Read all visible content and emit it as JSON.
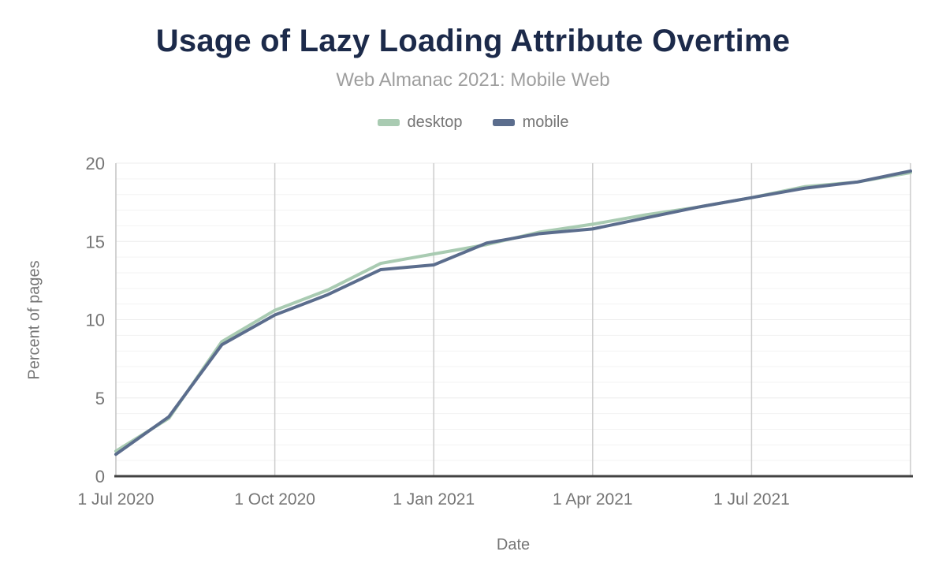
{
  "header": {
    "title": "Usage of Lazy Loading Attribute Overtime",
    "subtitle": "Web Almanac 2021: Mobile Web"
  },
  "legend": {
    "items": [
      {
        "label": "desktop",
        "color": "#a9cbb2"
      },
      {
        "label": "mobile",
        "color": "#5b6d8d"
      }
    ]
  },
  "colors": {
    "title": "#1c2a4a",
    "subtitle": "#9e9e9e",
    "axis_text": "#757575",
    "grid_horizontal_minor": "#f3f3f3",
    "grid_horizontal_major": "#ececec",
    "grid_vertical": "#cccccc",
    "axis_line": "#424242",
    "background": "#ffffff"
  },
  "chart_data": {
    "type": "line",
    "title": "Usage of Lazy Loading Attribute Overtime",
    "subtitle": "Web Almanac 2021: Mobile Web",
    "xlabel": "Date",
    "ylabel": "Percent of pages",
    "ylim": [
      0,
      20
    ],
    "y_major_ticks": [
      0,
      5,
      10,
      15,
      20
    ],
    "y_minor_step": 1,
    "grid": "on",
    "legend_position": "top",
    "x": [
      "1 Jul 2020",
      "1 Aug 2020",
      "1 Sep 2020",
      "1 Oct 2020",
      "1 Nov 2020",
      "1 Dec 2020",
      "1 Jan 2021",
      "1 Feb 2021",
      "1 Mar 2021",
      "1 Apr 2021",
      "1 May 2021",
      "1 Jun 2021",
      "1 Jul 2021",
      "1 Aug 2021",
      "1 Sep 2021",
      "1 Oct 2021"
    ],
    "x_tick_labels": [
      "1 Jul 2020",
      "1 Oct 2020",
      "1 Jan 2021",
      "1 Apr 2021",
      "1 Jul 2021"
    ],
    "x_tick_indices": [
      0,
      3,
      6,
      9,
      12
    ],
    "x_gridline_indices": [
      0,
      3,
      6,
      9,
      12,
      15
    ],
    "series": [
      {
        "name": "desktop",
        "color": "#a9cbb2",
        "values": [
          1.6,
          3.7,
          8.6,
          10.6,
          11.9,
          13.6,
          14.2,
          14.8,
          15.6,
          16.1,
          16.7,
          17.2,
          17.8,
          18.5,
          18.8,
          19.4
        ]
      },
      {
        "name": "mobile",
        "color": "#5b6d8d",
        "values": [
          1.4,
          3.8,
          8.4,
          10.3,
          11.6,
          13.2,
          13.5,
          14.9,
          15.5,
          15.8,
          16.5,
          17.2,
          17.8,
          18.4,
          18.8,
          19.5
        ]
      }
    ]
  }
}
